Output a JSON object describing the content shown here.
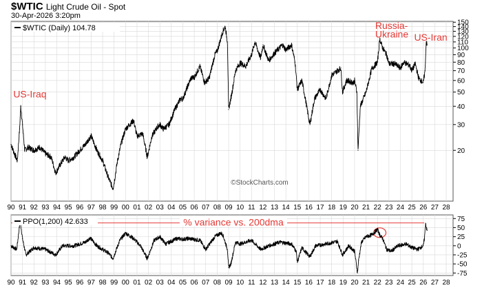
{
  "header": {
    "symbol": "$WTIC",
    "name": "Light Crude Oil - Spot",
    "date": "30-Apr-2026 3:20pm"
  },
  "watermark": "©StockCharts.com",
  "colors": {
    "price_line": "#000000",
    "annotation": "#e53935",
    "grid": "#d8d8d8"
  },
  "chart_data": [
    {
      "type": "line",
      "legend": "$WTIC (Daily) 104.78",
      "y_scale": "log",
      "ylim": [
        9,
        152
      ],
      "y_ticks": [
        150,
        140,
        130,
        120,
        110,
        100,
        90,
        80,
        70,
        60,
        50,
        40,
        30,
        20
      ],
      "x_ticks": [
        "90",
        "91",
        "92",
        "93",
        "94",
        "95",
        "96",
        "97",
        "98",
        "99",
        "00",
        "01",
        "02",
        "03",
        "04",
        "05",
        "06",
        "07",
        "08",
        "09",
        "10",
        "11",
        "12",
        "13",
        "14",
        "15",
        "16",
        "17",
        "18",
        "19",
        "20",
        "21",
        "22",
        "23",
        "24",
        "25",
        "26",
        "27",
        "28"
      ],
      "xlim": [
        1990,
        2028.6
      ],
      "grid": true,
      "annotations": [
        {
          "text": "US-Iraq",
          "x": 1990.2,
          "y": 46
        },
        {
          "text": "Russia-",
          "x": 2021.8,
          "y": 135
        },
        {
          "text": "Ukraine",
          "x": 2021.8,
          "y": 118
        },
        {
          "text": "US-Iran",
          "x": 2025.2,
          "y": 112
        }
      ],
      "series": [
        {
          "x": [
            1990.0,
            1990.3,
            1990.55,
            1990.75,
            1990.85,
            1991.0,
            1991.2,
            1991.5,
            1992.0,
            1992.5,
            1993.0,
            1993.5,
            1993.9,
            1994.3,
            1994.7,
            1995.0,
            1995.5,
            1996.0,
            1996.5,
            1996.8,
            1997.0,
            1997.5,
            1998.0,
            1998.5,
            1998.9,
            1999.0,
            1999.3,
            1999.6,
            2000.0,
            2000.7,
            2001.0,
            2001.5,
            2001.9,
            2002.3,
            2002.8,
            2003.0,
            2003.3,
            2003.8,
            2004.3,
            2004.8,
            2005.0,
            2005.7,
            2006.0,
            2006.5,
            2006.9,
            2007.3,
            2007.8,
            2008.0,
            2008.5,
            2008.7,
            2008.9,
            2009.0,
            2009.3,
            2009.6,
            2010.0,
            2010.5,
            2011.0,
            2011.3,
            2011.8,
            2012.0,
            2012.5,
            2013.0,
            2013.7,
            2014.0,
            2014.5,
            2014.8,
            2015.0,
            2015.4,
            2015.7,
            2016.0,
            2016.1,
            2016.5,
            2017.0,
            2017.5,
            2018.0,
            2018.8,
            2018.95,
            2019.3,
            2019.9,
            2020.0,
            2020.2,
            2020.3,
            2020.5,
            2021.0,
            2021.5,
            2022.0,
            2022.2,
            2022.45,
            2022.8,
            2023.0,
            2023.5,
            2024.0,
            2024.3,
            2024.8,
            2025.0,
            2025.3,
            2025.6,
            2026.0,
            2026.15,
            2026.25,
            2026.33
          ],
          "y": [
            22,
            19,
            17,
            28,
            40,
            30,
            20,
            21,
            20,
            21,
            19,
            18,
            14,
            16,
            18,
            17,
            18,
            20,
            22,
            24,
            25,
            20,
            17,
            13,
            11,
            12,
            17,
            22,
            28,
            32,
            25,
            26,
            18,
            25,
            29,
            30,
            28,
            30,
            38,
            45,
            45,
            62,
            63,
            75,
            58,
            62,
            90,
            95,
            130,
            140,
            110,
            38,
            50,
            70,
            79,
            75,
            90,
            110,
            85,
            105,
            82,
            92,
            105,
            97,
            105,
            80,
            52,
            60,
            45,
            33,
            30,
            45,
            52,
            45,
            65,
            73,
            50,
            60,
            58,
            60,
            50,
            20,
            40,
            50,
            72,
            80,
            115,
            100,
            90,
            78,
            78,
            73,
            80,
            76,
            70,
            78,
            62,
            58,
            70,
            110,
            104.78
          ]
        }
      ]
    },
    {
      "type": "line",
      "legend": "PPO(1,200) 42.633",
      "ylim": [
        -82,
        85
      ],
      "y_ticks": [
        75,
        50,
        25,
        0,
        -25,
        -50,
        -75
      ],
      "x_ticks": [
        "90",
        "91",
        "92",
        "93",
        "94",
        "95",
        "96",
        "97",
        "98",
        "99",
        "00",
        "01",
        "02",
        "03",
        "04",
        "05",
        "06",
        "07",
        "08",
        "09",
        "10",
        "11",
        "12",
        "13",
        "14",
        "15",
        "16",
        "17",
        "18",
        "19",
        "20",
        "21",
        "22",
        "23",
        "24",
        "25",
        "26",
        "27",
        "28"
      ],
      "xlim": [
        1990,
        2028.6
      ],
      "grid": true,
      "reference_line": {
        "label": "% variance vs. 200dma",
        "y": 63
      },
      "series": [
        {
          "x": [
            1990.0,
            1990.5,
            1990.8,
            1991.0,
            1991.3,
            1992.0,
            1993.0,
            1993.9,
            1994.5,
            1995.5,
            1996.5,
            1996.9,
            1997.5,
            1998.5,
            1998.9,
            1999.5,
            2000.0,
            2000.7,
            2001.3,
            2001.9,
            2002.5,
            2003.0,
            2003.5,
            2004.5,
            2005.0,
            2005.5,
            2006.5,
            2007.0,
            2007.8,
            2008.3,
            2008.5,
            2008.9,
            2009.0,
            2009.2,
            2009.6,
            2010.0,
            2011.0,
            2011.8,
            2012.5,
            2013.5,
            2014.5,
            2014.9,
            2015.0,
            2015.4,
            2015.8,
            2016.1,
            2016.6,
            2017.5,
            2018.5,
            2018.95,
            2019.5,
            2020.0,
            2020.25,
            2020.35,
            2020.6,
            2021.0,
            2021.5,
            2022.0,
            2022.2,
            2022.45,
            2022.8,
            2023.2,
            2023.8,
            2024.5,
            2025.0,
            2025.5,
            2026.0,
            2026.1,
            2026.2,
            2026.3,
            2026.33
          ],
          "y": [
            0,
            -10,
            70,
            20,
            -25,
            -5,
            -10,
            -25,
            0,
            0,
            10,
            22,
            0,
            -20,
            -35,
            15,
            35,
            20,
            0,
            -35,
            15,
            25,
            5,
            20,
            18,
            20,
            15,
            -10,
            25,
            35,
            30,
            -10,
            -60,
            -50,
            10,
            5,
            15,
            -10,
            0,
            10,
            5,
            -15,
            -45,
            -5,
            -20,
            -30,
            0,
            5,
            12,
            -25,
            0,
            -15,
            -75,
            -40,
            10,
            25,
            30,
            45,
            30,
            20,
            -10,
            -15,
            0,
            5,
            -5,
            -10,
            0,
            20,
            62,
            45,
            42.6
          ]
        }
      ]
    }
  ]
}
